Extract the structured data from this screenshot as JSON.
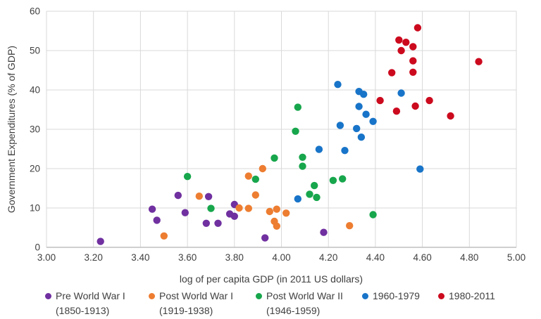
{
  "chart_data": {
    "type": "scatter",
    "title": "",
    "xlabel": "log of per capita GDP (in 2011 US dollars)",
    "ylabel": "Government Expenditures (% of GDP)",
    "xlim": [
      3.0,
      5.0
    ],
    "ylim": [
      0,
      60
    ],
    "x_ticks": [
      "3.00",
      "3.20",
      "3.40",
      "3.60",
      "3.80",
      "4.00",
      "4.20",
      "4.40",
      "4.60",
      "4.80",
      "5.00"
    ],
    "y_ticks": [
      "0",
      "10",
      "20",
      "30",
      "40",
      "50",
      "60"
    ],
    "grid": true,
    "legend_position": "bottom",
    "series": [
      {
        "name": "Pre World War I",
        "period": "(1850-1913)",
        "color": "#7030A0",
        "points": [
          [
            3.23,
            1.5
          ],
          [
            3.45,
            9.7
          ],
          [
            3.47,
            6.9
          ],
          [
            3.56,
            13.2
          ],
          [
            3.59,
            8.8
          ],
          [
            3.68,
            6.1
          ],
          [
            3.69,
            12.9
          ],
          [
            3.73,
            6.1
          ],
          [
            3.78,
            8.5
          ],
          [
            3.8,
            10.9
          ],
          [
            3.8,
            7.9
          ],
          [
            3.93,
            2.4
          ],
          [
            4.18,
            3.8
          ]
        ]
      },
      {
        "name": "Post World War I",
        "period": "(1919-1938)",
        "color": "#ED7D31",
        "points": [
          [
            3.5,
            2.9
          ],
          [
            3.65,
            13.0
          ],
          [
            3.82,
            10.0
          ],
          [
            3.86,
            9.9
          ],
          [
            3.86,
            18.1
          ],
          [
            3.89,
            13.3
          ],
          [
            3.92,
            20.0
          ],
          [
            3.95,
            9.1
          ],
          [
            3.97,
            6.6
          ],
          [
            3.98,
            9.7
          ],
          [
            3.98,
            5.4
          ],
          [
            4.02,
            8.7
          ],
          [
            4.29,
            5.5
          ]
        ]
      },
      {
        "name": "Post World War II",
        "period": "(1946-1959)",
        "color": "#17A64C",
        "points": [
          [
            3.6,
            18.0
          ],
          [
            3.7,
            9.9
          ],
          [
            3.89,
            17.3
          ],
          [
            3.97,
            22.7
          ],
          [
            4.06,
            29.5
          ],
          [
            4.07,
            35.6
          ],
          [
            4.09,
            22.9
          ],
          [
            4.09,
            20.6
          ],
          [
            4.12,
            13.5
          ],
          [
            4.14,
            15.7
          ],
          [
            4.15,
            12.7
          ],
          [
            4.22,
            17.0
          ],
          [
            4.26,
            17.4
          ],
          [
            4.39,
            8.3
          ]
        ]
      },
      {
        "name": "1960-1979",
        "period": "",
        "color": "#1874C8",
        "points": [
          [
            4.07,
            12.3
          ],
          [
            4.16,
            24.9
          ],
          [
            4.24,
            41.4
          ],
          [
            4.25,
            31.0
          ],
          [
            4.27,
            24.6
          ],
          [
            4.32,
            30.2
          ],
          [
            4.33,
            39.6
          ],
          [
            4.33,
            35.8
          ],
          [
            4.34,
            28.0
          ],
          [
            4.35,
            38.9
          ],
          [
            4.36,
            33.8
          ],
          [
            4.39,
            32.0
          ],
          [
            4.51,
            39.2
          ],
          [
            4.59,
            19.9
          ]
        ]
      },
      {
        "name": "1980-2011",
        "period": "",
        "color": "#CC0A1E",
        "points": [
          [
            4.42,
            37.3
          ],
          [
            4.47,
            44.4
          ],
          [
            4.49,
            34.6
          ],
          [
            4.5,
            52.7
          ],
          [
            4.51,
            50.0
          ],
          [
            4.53,
            52.1
          ],
          [
            4.56,
            51.0
          ],
          [
            4.56,
            47.4
          ],
          [
            4.56,
            44.5
          ],
          [
            4.57,
            35.9
          ],
          [
            4.58,
            55.8
          ],
          [
            4.63,
            37.3
          ],
          [
            4.72,
            33.4
          ],
          [
            4.84,
            47.2
          ]
        ]
      }
    ]
  },
  "colors": {
    "gridline": "#D9D9D9",
    "axis_line": "#BFBFBF",
    "tick_text": "#404040"
  }
}
